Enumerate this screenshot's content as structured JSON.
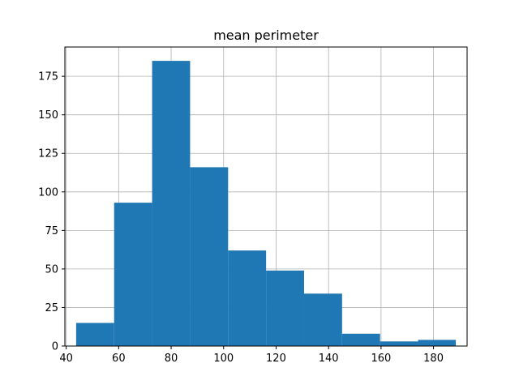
{
  "chart_data": {
    "type": "bar",
    "title": "mean perimeter",
    "xlabel": "",
    "ylabel": "",
    "bin_edges": [
      43.79,
      58.27,
      72.75,
      87.23,
      101.71,
      116.19,
      130.67,
      145.15,
      159.63,
      174.11,
      188.5
    ],
    "values": [
      15,
      93,
      185,
      116,
      62,
      49,
      34,
      8,
      3,
      4
    ],
    "xlim": [
      39.5,
      192.8
    ],
    "ylim": [
      0,
      194
    ],
    "x_ticks": [
      40,
      60,
      80,
      100,
      120,
      140,
      160,
      180
    ],
    "y_ticks": [
      0,
      25,
      50,
      75,
      100,
      125,
      150,
      175
    ],
    "grid": true,
    "bar_color": "#1f77b4",
    "grid_color": "#b0b0b0"
  }
}
